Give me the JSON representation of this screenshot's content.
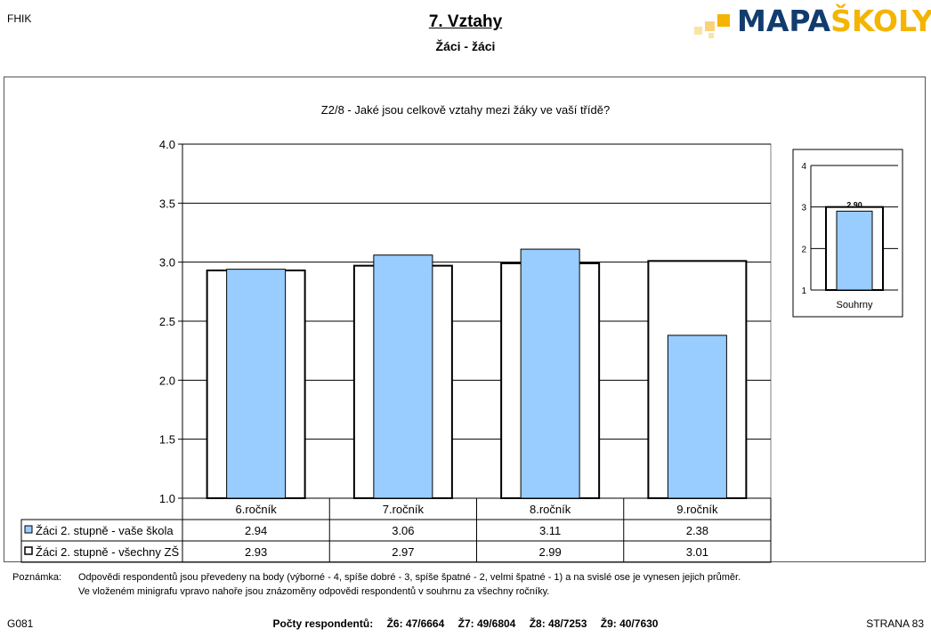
{
  "header": {
    "corner_left": "FHIK",
    "title": "7. Vztahy",
    "subtitle": "Žáci - žáci",
    "logo": {
      "part1": "MAPA",
      "part2": "ŠKOLY",
      "color1": "#123c6e",
      "color2": "#f4b400"
    }
  },
  "chart_data": [
    {
      "type": "bar",
      "title": "Z2/8 - Jaké jsou celkově vztahy mezi žáky ve vaší třídě?",
      "categories": [
        "6.ročník",
        "7.ročník",
        "8.ročník",
        "9.ročník"
      ],
      "series": [
        {
          "name": "Žáci 2. stupně - vaše škola",
          "values": [
            2.94,
            3.06,
            3.11,
            2.38
          ],
          "labels": [
            "2.94",
            "3.06",
            "3.11",
            "2.38"
          ],
          "color": "#99ccff",
          "style": "filled"
        },
        {
          "name": "Žáci 2. stupně - všechny ZŠ",
          "values": [
            2.93,
            2.97,
            2.99,
            3.01
          ],
          "labels": [
            "2.93",
            "2.97",
            "2.99",
            "3.01"
          ],
          "color": "#ffffff",
          "style": "outline"
        }
      ],
      "ylim": [
        1.0,
        4.0
      ],
      "yticks": [
        "1.0",
        "1.5",
        "2.0",
        "2.5",
        "3.0",
        "3.5",
        "4.0"
      ],
      "grid": true,
      "legend": "table-below"
    },
    {
      "type": "bar",
      "categories": [
        "Souhrny"
      ],
      "series": [
        {
          "name": "vaše škola",
          "values": [
            2.9
          ],
          "color": "#99ccff",
          "style": "filled"
        },
        {
          "name": "všechny ZŠ",
          "values": [
            3.0
          ],
          "color": "#ffffff",
          "style": "outline"
        }
      ],
      "data_label": "2.90",
      "ylim": [
        1,
        4
      ],
      "yticks": [
        "1",
        "2",
        "3",
        "4"
      ],
      "grid": true
    }
  ],
  "note": {
    "label": "Poznámka:",
    "line1": "Odpovědi respondentů jsou převedeny na body (výborné - 4, spíše dobré - 3, spíše špatné - 2, velmi špatné - 1) a na svislé ose je vynesen jejich průměr.",
    "line2": "Ve vloženém minigrafu vpravo nahoře jsou znázoměny odpovědi respondentů v souhrnu za všechny ročníky."
  },
  "footer": {
    "code": "G081",
    "respondents_label": "Počty respondentů:",
    "counts": [
      "Ž6: 47/6664",
      "Ž7: 49/6804",
      "Ž8: 48/7253",
      "Ž9: 40/7630"
    ],
    "page": "STRANA 83"
  }
}
